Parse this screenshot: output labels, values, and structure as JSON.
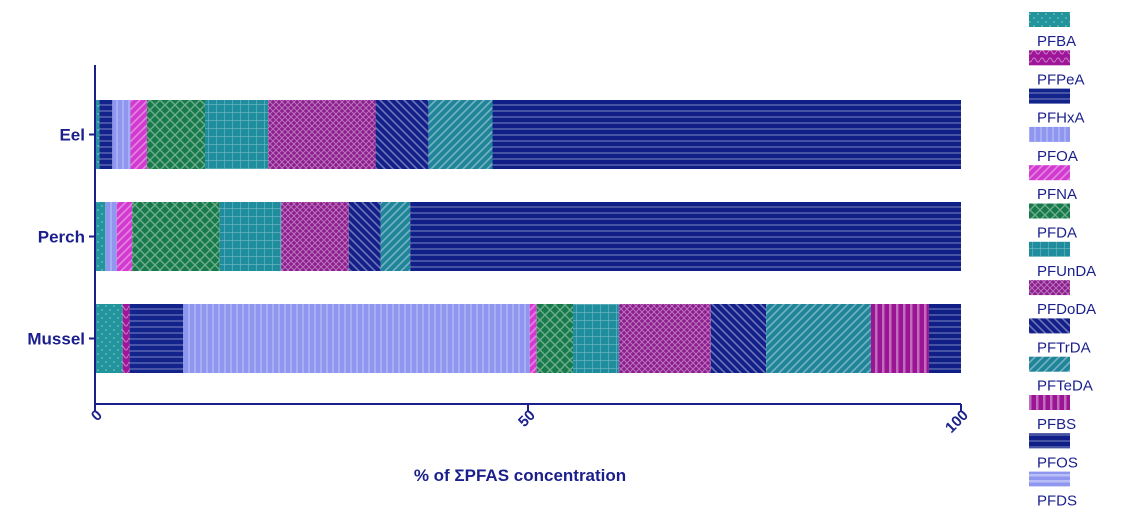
{
  "chart_data": {
    "type": "bar",
    "orientation": "horizontal",
    "stacked": true,
    "categories": [
      "Eel",
      "Perch",
      "Mussel"
    ],
    "xlabel": "% of ΣPFAS concentration",
    "ylabel": "",
    "xlim": [
      0,
      100
    ],
    "xticks": [
      0,
      50,
      100
    ],
    "grid": false,
    "legend_position": "right",
    "series": [
      {
        "name": "PFBA",
        "values": [
          0.5,
          1.2,
          3.2
        ],
        "color": "#22949b",
        "pattern": "dots"
      },
      {
        "name": "PFPeA",
        "values": [
          0.0,
          0.0,
          0.8
        ],
        "color": "#a0169a",
        "pattern": "waves"
      },
      {
        "name": "PFHxA",
        "values": [
          1.5,
          0.0,
          6.2
        ],
        "color": "#12238c",
        "pattern": "hlines"
      },
      {
        "name": "PFOA",
        "values": [
          2.1,
          1.3,
          40.0
        ],
        "color": "#8f96f0",
        "pattern": "vlines"
      },
      {
        "name": "PFNA",
        "values": [
          1.9,
          1.8,
          0.8
        ],
        "color": "#d23ad0",
        "pattern": "diag-right"
      },
      {
        "name": "PFDA",
        "values": [
          6.7,
          10.1,
          4.2
        ],
        "color": "#177a4a",
        "pattern": "cross-diag"
      },
      {
        "name": "PFUnDA",
        "values": [
          7.3,
          7.1,
          5.3
        ],
        "color": "#1f8d9e",
        "pattern": "grid"
      },
      {
        "name": "PFDoDA",
        "values": [
          12.4,
          7.8,
          10.6
        ],
        "color": "#8d1d8f",
        "pattern": "cross-diag-dense"
      },
      {
        "name": "PFTrDA",
        "values": [
          6.1,
          3.7,
          6.4
        ],
        "color": "#13208a",
        "pattern": "diag-left"
      },
      {
        "name": "PFTeDA",
        "values": [
          7.4,
          3.4,
          12.1
        ],
        "color": "#20859a",
        "pattern": "diag-right"
      },
      {
        "name": "PFBS",
        "values": [
          0.0,
          0.0,
          6.7
        ],
        "color": "#9a1494",
        "pattern": "vbars"
      },
      {
        "name": "PFOS",
        "values": [
          54.1,
          63.6,
          3.7
        ],
        "color": "#101e87",
        "pattern": "hlines"
      },
      {
        "name": "PFDS",
        "values": [
          0.0,
          0.0,
          0.0
        ],
        "color": "#8f96f0",
        "pattern": "hbars"
      }
    ]
  }
}
